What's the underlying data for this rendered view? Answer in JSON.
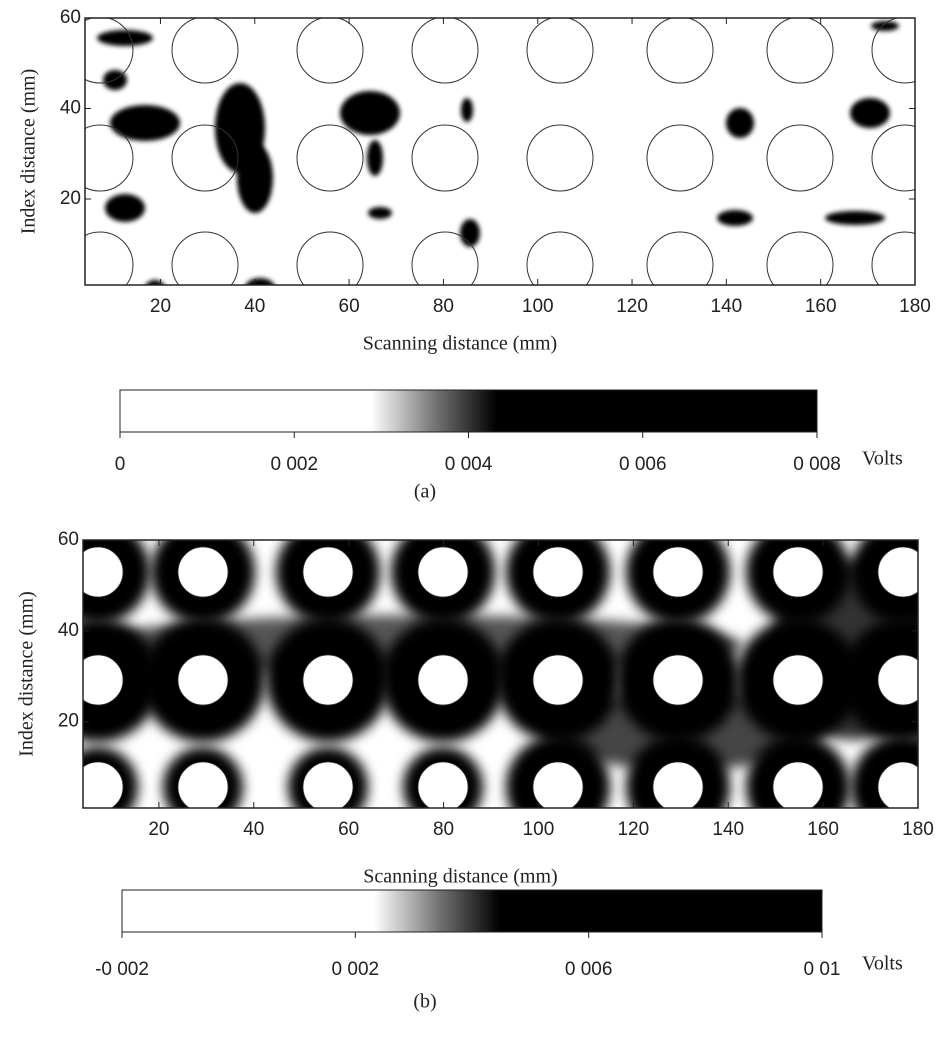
{
  "chart_data": [
    {
      "type": "heatmap",
      "caption": "(a)",
      "x_label": "Scanning distance (mm)",
      "y_label": "Index distance (mm)",
      "xlim": [
        4,
        180
      ],
      "xticks": [
        20,
        40,
        60,
        80,
        100,
        120,
        140,
        160,
        180
      ],
      "ylim": [
        1,
        60
      ],
      "yticks": [
        20,
        40,
        60
      ],
      "colormap": [
        "#ffffff",
        "#000000"
      ],
      "colorbar": {
        "label": "Volts",
        "lim": [
          0,
          0.008
        ],
        "ticks": [
          0,
          {
            "value": 0.002,
            "label": "0 002"
          },
          {
            "value": 0.004,
            "label": "0 004"
          },
          {
            "value": 0.006,
            "label": "0 006"
          },
          {
            "value": 0.008,
            "label": "0 008"
          }
        ]
      }
    },
    {
      "type": "heatmap",
      "caption": "(b)",
      "x_label": "Scanning distance (mm)",
      "y_label": "Index distance (mm)",
      "xlim": [
        4,
        180
      ],
      "xticks": [
        20,
        40,
        60,
        80,
        100,
        120,
        140,
        160,
        180
      ],
      "ylim": [
        1,
        60
      ],
      "yticks": [
        20,
        40,
        60
      ],
      "colormap": [
        "#ffffff",
        "#000000"
      ],
      "colorbar": {
        "label": "Volts",
        "lim": [
          -0.002,
          0.01
        ],
        "ticks": [
          {
            "value": -0.002,
            "label": "-0 002"
          },
          {
            "value": 0.002,
            "label": "0 002"
          },
          {
            "value": 0.006,
            "label": "0 006"
          },
          {
            "value": 0.01,
            "label": "0 01"
          }
        ]
      }
    }
  ]
}
